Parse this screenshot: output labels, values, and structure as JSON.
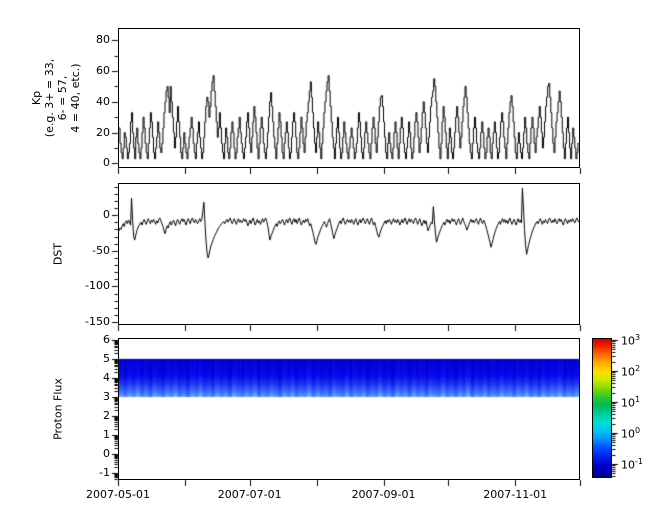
{
  "figure": {
    "background": "#ffffff",
    "axis_color": "#000000",
    "line_color": "#000000",
    "x_axis": {
      "total_days": 214,
      "tick_day_offsets": [
        0,
        31,
        61,
        92,
        123,
        153,
        184,
        214
      ],
      "labeled_ticks": [
        {
          "day": 0,
          "label": "2007-05-01"
        },
        {
          "day": 61,
          "label": "2007-07-01"
        },
        {
          "day": 123,
          "label": "2007-09-01"
        },
        {
          "day": 184,
          "label": "2007-11-01"
        }
      ]
    }
  },
  "chart_data": [
    {
      "type": "line",
      "style": "step",
      "ylabel_lines": [
        "Kp",
        "(e.g. 3+ = 33,",
        "6- = 57,",
        "4 = 40, etc.)"
      ],
      "ylim": [
        -3,
        88
      ],
      "yticks": [
        {
          "v": 80,
          "label": "80"
        },
        {
          "v": 60,
          "label": "60"
        },
        {
          "v": 40,
          "label": "40"
        },
        {
          "v": 20,
          "label": "20"
        },
        {
          "v": 0,
          "label": "0"
        }
      ],
      "yminor": [
        10,
        30,
        50,
        70
      ],
      "x_range_days": [
        0,
        214
      ],
      "values": [
        23,
        13,
        7,
        3,
        10,
        20,
        17,
        10,
        3,
        7,
        13,
        27,
        33,
        20,
        10,
        3,
        17,
        23,
        13,
        7,
        3,
        10,
        20,
        30,
        23,
        13,
        7,
        3,
        13,
        23,
        33,
        27,
        17,
        7,
        3,
        10,
        17,
        27,
        20,
        10,
        7,
        13,
        23,
        33,
        40,
        47,
        50,
        43,
        33,
        50,
        40,
        30,
        20,
        10,
        17,
        27,
        37,
        27,
        17,
        7,
        3,
        10,
        20,
        13,
        7,
        3,
        10,
        17,
        23,
        30,
        23,
        13,
        7,
        3,
        13,
        20,
        27,
        17,
        10,
        3,
        7,
        17,
        27,
        37,
        43,
        40,
        30,
        37,
        47,
        53,
        57,
        47,
        37,
        27,
        17,
        23,
        33,
        23,
        13,
        7,
        3,
        13,
        23,
        17,
        7,
        3,
        10,
        20,
        27,
        20,
        10,
        3,
        7,
        17,
        23,
        30,
        20,
        13,
        7,
        3,
        10,
        17,
        27,
        33,
        23,
        13,
        7,
        17,
        27,
        37,
        30,
        20,
        10,
        3,
        13,
        23,
        30,
        23,
        13,
        7,
        3,
        10,
        20,
        30,
        40,
        46,
        37,
        27,
        17,
        10,
        3,
        13,
        23,
        33,
        27,
        17,
        7,
        3,
        13,
        20,
        27,
        20,
        10,
        3,
        7,
        17,
        27,
        33,
        27,
        17,
        7,
        3,
        10,
        20,
        30,
        23,
        13,
        7,
        17,
        27,
        33,
        40,
        47,
        53,
        43,
        33,
        23,
        13,
        7,
        17,
        27,
        20,
        10,
        3,
        13,
        23,
        33,
        40,
        47,
        53,
        57,
        47,
        37,
        27,
        17,
        10,
        3,
        13,
        23,
        30,
        20,
        10,
        3,
        7,
        17,
        27,
        20,
        13,
        7,
        3,
        10,
        17,
        23,
        17,
        10,
        3,
        7,
        13,
        23,
        33,
        27,
        17,
        7,
        3,
        10,
        20,
        27,
        20,
        13,
        7,
        3,
        13,
        23,
        30,
        23,
        13,
        7,
        17,
        27,
        37,
        43,
        44,
        37,
        27,
        17,
        7,
        3,
        13,
        20,
        13,
        7,
        3,
        10,
        20,
        27,
        20,
        10,
        3,
        13,
        23,
        30,
        23,
        13,
        7,
        3,
        10,
        17,
        27,
        20,
        10,
        3,
        7,
        17,
        27,
        33,
        27,
        17,
        7,
        13,
        23,
        33,
        40,
        33,
        23,
        13,
        7,
        17,
        27,
        37,
        43,
        47,
        55,
        50,
        40,
        30,
        20,
        10,
        3,
        13,
        27,
        37,
        30,
        20,
        10,
        3,
        13,
        23,
        17,
        7,
        3,
        10,
        20,
        30,
        37,
        30,
        20,
        10,
        17,
        27,
        37,
        43,
        50,
        43,
        33,
        23,
        13,
        7,
        3,
        13,
        23,
        30,
        23,
        13,
        7,
        3,
        10,
        20,
        27,
        20,
        10,
        3,
        7,
        17,
        23,
        17,
        7,
        3,
        13,
        20,
        27,
        20,
        10,
        3,
        7,
        17,
        27,
        33,
        27,
        17,
        10,
        3,
        13,
        23,
        33,
        40,
        44,
        37,
        27,
        17,
        7,
        3,
        13,
        20,
        13,
        7,
        3,
        10,
        20,
        30,
        23,
        13,
        7,
        3,
        13,
        23,
        30,
        23,
        13,
        7,
        17,
        23,
        30,
        37,
        30,
        20,
        10,
        17,
        27,
        37,
        43,
        50,
        52,
        43,
        33,
        23,
        13,
        7,
        17,
        27,
        33,
        40,
        47,
        40,
        30,
        20,
        10,
        3,
        13,
        23,
        30,
        20,
        10,
        3,
        13,
        23,
        17,
        10,
        3,
        7,
        13
      ]
    },
    {
      "type": "line",
      "style": "line",
      "ylabel": "DST",
      "ylim": [
        -154,
        45
      ],
      "yticks": [
        {
          "v": 0,
          "label": "0"
        },
        {
          "v": -50,
          "label": "-50"
        },
        {
          "v": -100,
          "label": "-100"
        },
        {
          "v": -150,
          "label": "-150"
        }
      ],
      "yminor_step": 10,
      "x_range_days": [
        0,
        214
      ],
      "values": [
        -22,
        -18,
        -20,
        -15,
        -12,
        -16,
        -10,
        -8,
        -12,
        -7,
        -10,
        -14,
        24,
        -8,
        -30,
        -35,
        -28,
        -22,
        -18,
        -15,
        -12,
        -10,
        -14,
        -9,
        -6,
        -10,
        -13,
        -8,
        -5,
        -9,
        -12,
        -7,
        -10,
        -6,
        -9,
        -13,
        -8,
        -11,
        -6,
        -4,
        -8,
        -12,
        -16,
        -22,
        -26,
        -20,
        -15,
        -18,
        -12,
        -9,
        -14,
        -10,
        -7,
        -11,
        -15,
        -9,
        -6,
        -10,
        -13,
        -8,
        -5,
        -9,
        -6,
        -10,
        -14,
        -8,
        -5,
        -8,
        -12,
        -7,
        -4,
        -8,
        -11,
        -6,
        -9,
        -12,
        -8,
        -5,
        -9,
        -6,
        5,
        18,
        -10,
        -35,
        -52,
        -60,
        -55,
        -48,
        -42,
        -38,
        -34,
        -30,
        -27,
        -24,
        -21,
        -18,
        -16,
        -14,
        -12,
        -10,
        -9,
        -12,
        -8,
        -6,
        -10,
        -7,
        -4,
        -8,
        -12,
        -9,
        -5,
        -9,
        -13,
        -8,
        -5,
        -10,
        -7,
        -11,
        -8,
        -5,
        -9,
        -6,
        -10,
        -15,
        -11,
        -7,
        -12,
        -8,
        -4,
        -9,
        -14,
        -10,
        -6,
        -11,
        -8,
        -13,
        -9,
        -5,
        -10,
        -7,
        -4,
        -9,
        -15,
        -25,
        -35,
        -30,
        -26,
        -22,
        -18,
        -15,
        -12,
        -16,
        -11,
        -8,
        -12,
        -9,
        -6,
        -10,
        -14,
        -9,
        -6,
        -11,
        -7,
        -4,
        -9,
        -13,
        -8,
        -5,
        -10,
        -6,
        -12,
        -8,
        -4,
        -9,
        -14,
        -10,
        -7,
        -11,
        -6,
        -9,
        -5,
        -10,
        -15,
        -12,
        -18,
        -24,
        -30,
        -38,
        -41,
        -35,
        -30,
        -26,
        -22,
        -18,
        -15,
        -12,
        -9,
        -13,
        -17,
        -12,
        -8,
        -5,
        -12,
        -18,
        -26,
        -33,
        -28,
        -23,
        -19,
        -15,
        -11,
        -8,
        -12,
        -7,
        -4,
        -9,
        -13,
        -9,
        -6,
        -10,
        -7,
        -11,
        -6,
        -9,
        -13,
        -8,
        -5,
        -10,
        -14,
        -9,
        -6,
        -11,
        -7,
        -4,
        -8,
        -12,
        -9,
        -5,
        -9,
        -13,
        -8,
        -4,
        -9,
        -14,
        -10,
        -16,
        -22,
        -28,
        -31,
        -26,
        -21,
        -17,
        -14,
        -11,
        -8,
        -12,
        -7,
        -10,
        -6,
        -9,
        -13,
        -8,
        -5,
        -10,
        -7,
        -11,
        -6,
        -9,
        -14,
        -10,
        -6,
        -11,
        -8,
        -4,
        -9,
        -13,
        -8,
        -5,
        -10,
        -6,
        -9,
        -12,
        -7,
        -4,
        -8,
        -13,
        -9,
        -5,
        -10,
        -15,
        -11,
        -7,
        -12,
        -8,
        -16,
        -22,
        -18,
        -14,
        -10,
        -12,
        12,
        -8,
        -25,
        -38,
        -33,
        -28,
        -24,
        -20,
        -16,
        -13,
        -10,
        -14,
        -9,
        -6,
        -10,
        -7,
        -12,
        -8,
        -5,
        -9,
        -6,
        -10,
        -14,
        -9,
        -5,
        -9,
        -13,
        -8,
        -4,
        -9,
        -12,
        -16,
        -21,
        -17,
        -13,
        -9,
        -6,
        -10,
        -7,
        -11,
        -8,
        -5,
        -9,
        -13,
        -8,
        -4,
        -9,
        -12,
        -7,
        -10,
        -15,
        -20,
        -26,
        -32,
        -38,
        -45,
        -40,
        -34,
        -28,
        -23,
        -19,
        -15,
        -12,
        -9,
        -13,
        -8,
        -5,
        -10,
        -6,
        -11,
        -7,
        -12,
        -8,
        -4,
        -9,
        -13,
        -9,
        -6,
        -10,
        -14,
        -9,
        -5,
        -10,
        -7,
        -11,
        38,
        10,
        -20,
        -42,
        -55,
        -48,
        -41,
        -35,
        -30,
        -25,
        -21,
        -17,
        -14,
        -11,
        -9,
        -12,
        -8,
        -5,
        -9,
        -13,
        -8,
        -11,
        -6,
        -9,
        -12,
        -7,
        -4,
        -8,
        -11,
        -7,
        -10,
        -5,
        -9,
        -12,
        -8,
        -5,
        -9,
        -6,
        -10,
        -14,
        -9,
        -5,
        -8,
        -12,
        -7,
        -10,
        -6,
        -9,
        -5,
        -8,
        -11,
        -7,
        -4,
        -8,
        -10
      ]
    },
    {
      "type": "heatmap",
      "ylabel": "Proton Flux",
      "ylim": [
        -1.37,
        6.1
      ],
      "yticks": [
        {
          "v": 6,
          "label": "6"
        },
        {
          "v": 5,
          "label": "5"
        },
        {
          "v": 4,
          "label": "4"
        },
        {
          "v": 3,
          "label": "3"
        },
        {
          "v": 2,
          "label": "2"
        },
        {
          "v": 1,
          "label": "1"
        },
        {
          "v": 0,
          "label": "0"
        },
        {
          "v": -1,
          "label": "-1"
        }
      ],
      "log_minor_ticks": true,
      "band": {
        "y_top": 5,
        "y_bottom": 3,
        "description": "continuous blue proton-flux band between y=3 and y=5, dark blue on top fading to bright blue at bottom, with vertical stripe variations",
        "column_intensity": [
          0.62,
          0.28,
          0.75,
          0.45,
          0.88,
          0.33,
          0.58,
          0.15,
          0.8,
          0.5,
          0.22,
          0.68,
          0.4,
          0.85,
          0.3,
          0.55,
          0.12,
          0.72,
          0.48,
          0.9,
          0.35,
          0.6,
          0.25,
          0.78,
          0.42,
          0.65,
          0.18,
          0.82,
          0.52,
          0.3,
          0.7,
          0.44,
          0.86,
          0.2,
          0.58,
          0.36,
          0.74,
          0.5,
          0.1,
          0.66,
          0.4,
          0.8,
          0.28,
          0.6,
          0.46,
          0.9,
          0.24,
          0.7,
          0.38,
          0.56,
          0.16,
          0.76,
          0.48,
          0.32,
          0.84,
          0.26,
          0.64,
          0.42,
          0.72,
          0.2,
          0.54,
          0.36,
          0.88,
          0.3,
          0.62,
          0.14,
          0.78,
          0.46,
          0.68,
          0.24,
          0.8,
          0.4,
          0.58,
          0.18,
          0.74,
          0.5,
          0.34,
          0.86,
          0.28,
          0.6,
          0.22,
          0.7,
          0.44,
          0.9,
          0.12,
          0.66,
          0.38,
          0.76,
          0.26,
          0.56,
          0.32,
          0.82,
          0.48,
          0.64,
          0.2,
          0.72,
          0.42,
          0.84,
          0.3,
          0.58,
          0.16,
          0.78,
          0.36,
          0.68,
          0.52,
          0.88,
          0.24,
          0.62,
          0.4,
          0.74
        ]
      },
      "colorbar": {
        "scale": "log",
        "range_exponents": [
          -1.45,
          3.06
        ],
        "ticks": [
          {
            "base": "10",
            "exp": "3"
          },
          {
            "base": "10",
            "exp": "2"
          },
          {
            "base": "10",
            "exp": "1"
          },
          {
            "base": "10",
            "exp": "0"
          },
          {
            "base": "10",
            "exp": "-1"
          }
        ],
        "tick_exponents": [
          3,
          2,
          1,
          0,
          -1
        ],
        "colormap": "rainbow",
        "stops": [
          [
            0.0,
            "#d40000"
          ],
          [
            0.05,
            "#ee2200"
          ],
          [
            0.11,
            "#ff6600"
          ],
          [
            0.17,
            "#ffaa00"
          ],
          [
            0.24,
            "#ffe000"
          ],
          [
            0.3,
            "#c8ea00"
          ],
          [
            0.36,
            "#7fd800"
          ],
          [
            0.42,
            "#2ec832"
          ],
          [
            0.48,
            "#00bb55"
          ],
          [
            0.54,
            "#00cc99"
          ],
          [
            0.6,
            "#00ddcc"
          ],
          [
            0.66,
            "#00c8ee"
          ],
          [
            0.72,
            "#0099ff"
          ],
          [
            0.78,
            "#0055ff"
          ],
          [
            0.85,
            "#0022ee"
          ],
          [
            0.92,
            "#0000cc"
          ],
          [
            1.0,
            "#000088"
          ]
        ],
        "band_palette": {
          "top": "#0000c3",
          "mid": "#0000dc",
          "lower": "#2050f0",
          "bottom": "#5c8cff"
        }
      }
    }
  ]
}
